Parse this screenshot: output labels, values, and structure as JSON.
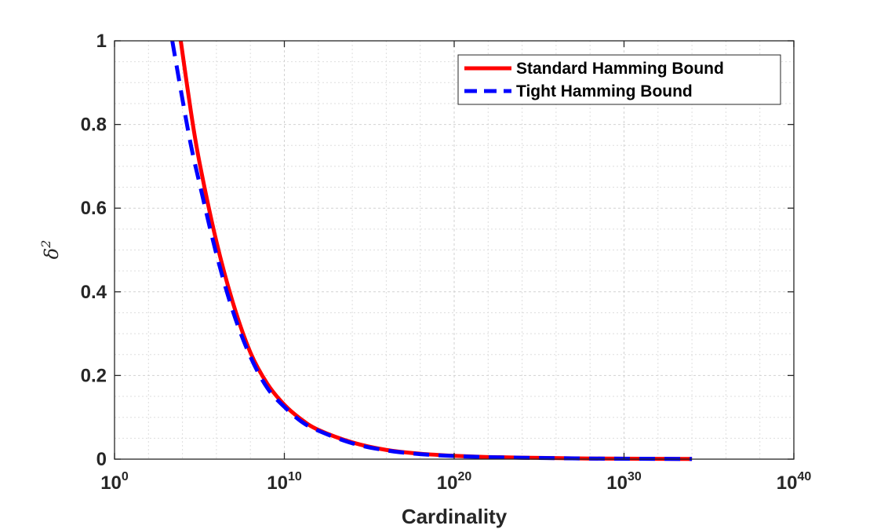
{
  "chart_data": {
    "type": "line",
    "title": "",
    "xlabel": "Cardinality",
    "ylabel": {
      "base": "δ",
      "exponent": "2"
    },
    "xscale": "log10",
    "xlim_exponent": [
      0,
      40
    ],
    "ylim": [
      0,
      1
    ],
    "grid": true,
    "minor_grid": true,
    "legend_position": "top-right",
    "xticks": [
      {
        "base": "10",
        "exp": "0"
      },
      {
        "base": "10",
        "exp": "10"
      },
      {
        "base": "10",
        "exp": "20"
      },
      {
        "base": "10",
        "exp": "30"
      },
      {
        "base": "10",
        "exp": "40"
      }
    ],
    "xtick_exponents": [
      0,
      10,
      20,
      30,
      40
    ],
    "yticks": [
      "0",
      "0.2",
      "0.4",
      "0.6",
      "0.8",
      "1"
    ],
    "ytick_values": [
      0,
      0.2,
      0.4,
      0.6,
      0.8,
      1
    ],
    "series": [
      {
        "name": "Standard Hamming Bound",
        "color": "#ff0000",
        "style": "solid",
        "log10_x": [
          3.9,
          4.5,
          5.0,
          6.0,
          7.0,
          8.0,
          9.0,
          10.0,
          11.0,
          12.0,
          14.0,
          16.0,
          18.0,
          20.0,
          22.0,
          25.0,
          28.0,
          31.0,
          34.0
        ],
        "y": [
          1.0,
          0.83,
          0.71,
          0.52,
          0.37,
          0.255,
          0.18,
          0.13,
          0.095,
          0.07,
          0.04,
          0.022,
          0.013,
          0.008,
          0.005,
          0.003,
          0.0015,
          0.001,
          0.0005
        ]
      },
      {
        "name": "Tight Hamming Bound",
        "color": "#0000ff",
        "style": "dashed",
        "log10_x": [
          3.4,
          4.0,
          4.5,
          5.0,
          6.0,
          7.0,
          8.0,
          9.0,
          10.0,
          11.0,
          12.0,
          14.0,
          16.0,
          18.0,
          20.0,
          22.0,
          25.0,
          28.0,
          31.0,
          34.0
        ],
        "y": [
          1.0,
          0.86,
          0.75,
          0.66,
          0.49,
          0.35,
          0.245,
          0.17,
          0.125,
          0.09,
          0.068,
          0.038,
          0.021,
          0.012,
          0.0075,
          0.0048,
          0.0028,
          0.0014,
          0.0009,
          0.0004
        ]
      }
    ]
  },
  "colors": {
    "axis": "#262626",
    "grid": "#dedede",
    "background": "#ffffff"
  }
}
